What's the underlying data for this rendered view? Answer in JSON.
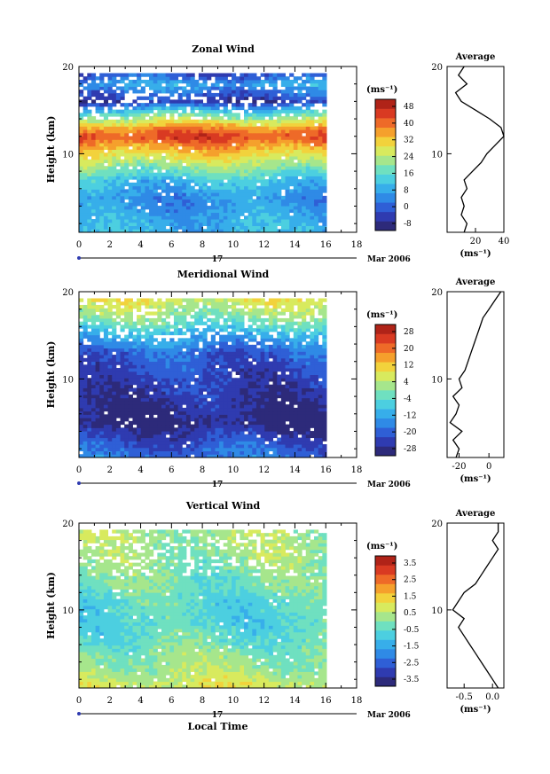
{
  "page": {
    "x_axis_label": "Local Time",
    "date_label": "Mar 2006",
    "day_label": "17",
    "unit_label": "(ms⁻¹)"
  },
  "chart_data": [
    {
      "type": "heatmap",
      "title": "Zonal Wind",
      "xlabel": "",
      "ylabel": "Height (km)",
      "xlim": [
        0,
        18
      ],
      "ylim": [
        1,
        20
      ],
      "x_ticks": [
        "0",
        "2",
        "4",
        "6",
        "8",
        "10",
        "12",
        "14",
        "16",
        "18"
      ],
      "y_ticks": [
        "10",
        "20"
      ],
      "colorbar": {
        "unit": "(ms⁻¹)",
        "tick_labels": [
          "48",
          "40",
          "32",
          "24",
          "16",
          "8",
          "0",
          "-8"
        ],
        "range": [
          -8,
          52
        ]
      },
      "field_profile": [
        {
          "h": 1,
          "v": 12
        },
        {
          "h": 3,
          "v": 10
        },
        {
          "h": 5,
          "v": 8
        },
        {
          "h": 7,
          "v": 14
        },
        {
          "h": 9,
          "v": 26
        },
        {
          "h": 11,
          "v": 38
        },
        {
          "h": 12,
          "v": 45
        },
        {
          "h": 13,
          "v": 38
        },
        {
          "h": 14,
          "v": 26
        },
        {
          "h": 15,
          "v": 14
        },
        {
          "h": 16,
          "v": -2
        },
        {
          "h": 17,
          "v": 4
        },
        {
          "h": 18,
          "v": 10
        },
        {
          "h": 19,
          "v": 2
        }
      ],
      "average_profile": {
        "title": "Average",
        "xlabel": "(ms⁻¹)",
        "xlim": [
          0,
          40
        ],
        "x_ticks": [
          "20",
          "40"
        ],
        "y_ticks": [
          "10",
          "20"
        ],
        "h": [
          1,
          2,
          3,
          4,
          5,
          6,
          7,
          8,
          9,
          10,
          11,
          12,
          13,
          14,
          15,
          16,
          17,
          18,
          19,
          20
        ],
        "v": [
          12,
          14,
          10,
          12,
          10,
          14,
          12,
          18,
          24,
          28,
          34,
          40,
          38,
          30,
          20,
          10,
          6,
          14,
          8,
          12
        ]
      }
    },
    {
      "type": "heatmap",
      "title": "Meridional Wind",
      "xlabel": "",
      "ylabel": "Height (km)",
      "xlim": [
        0,
        18
      ],
      "ylim": [
        1,
        20
      ],
      "x_ticks": [
        "0",
        "2",
        "4",
        "6",
        "8",
        "10",
        "12",
        "14",
        "16",
        "18"
      ],
      "y_ticks": [
        "10",
        "20"
      ],
      "colorbar": {
        "unit": "(ms⁻¹)",
        "tick_labels": [
          "28",
          "20",
          "12",
          "4",
          "-4",
          "-12",
          "-20",
          "-28"
        ],
        "range": [
          -28,
          28
        ]
      },
      "field_profile": [
        {
          "h": 1,
          "v": -16
        },
        {
          "h": 3,
          "v": -20
        },
        {
          "h": 5,
          "v": -26
        },
        {
          "h": 7,
          "v": -24
        },
        {
          "h": 9,
          "v": -22
        },
        {
          "h": 11,
          "v": -20
        },
        {
          "h": 13,
          "v": -18
        },
        {
          "h": 15,
          "v": -10
        },
        {
          "h": 17,
          "v": 0
        },
        {
          "h": 19,
          "v": 6
        }
      ],
      "average_profile": {
        "title": "Average",
        "xlabel": "(ms⁻¹)",
        "xlim": [
          -28,
          10
        ],
        "x_ticks": [
          "-20",
          "0"
        ],
        "y_ticks": [
          "10",
          "20"
        ],
        "h": [
          1,
          2,
          3,
          4,
          5,
          6,
          7,
          8,
          9,
          10,
          11,
          12,
          13,
          14,
          15,
          16,
          17,
          18,
          19,
          20
        ],
        "v": [
          -22,
          -20,
          -24,
          -18,
          -26,
          -22,
          -20,
          -24,
          -18,
          -20,
          -16,
          -14,
          -12,
          -10,
          -8,
          -6,
          -4,
          0,
          4,
          8
        ]
      }
    },
    {
      "type": "heatmap",
      "title": "Vertical Wind",
      "xlabel": "Local Time",
      "ylabel": "Height (km)",
      "xlim": [
        0,
        18
      ],
      "ylim": [
        1,
        20
      ],
      "x_ticks": [
        "0",
        "2",
        "4",
        "6",
        "8",
        "10",
        "12",
        "14",
        "16",
        "18"
      ],
      "y_ticks": [
        "10",
        "20"
      ],
      "colorbar": {
        "unit": "(ms⁻¹)",
        "tick_labels": [
          "3.5",
          "2.5",
          "1.5",
          "0.5",
          "-0.5",
          "-1.5",
          "-2.5",
          "-3.5"
        ],
        "range": [
          -3.5,
          3.5
        ]
      },
      "field_profile": [
        {
          "h": 1,
          "v": 0.8
        },
        {
          "h": 3,
          "v": 0.3
        },
        {
          "h": 5,
          "v": 0.0
        },
        {
          "h": 7,
          "v": -0.4
        },
        {
          "h": 9,
          "v": -0.6
        },
        {
          "h": 11,
          "v": -0.5
        },
        {
          "h": 13,
          "v": -0.2
        },
        {
          "h": 15,
          "v": 0.0
        },
        {
          "h": 17,
          "v": 0.2
        },
        {
          "h": 19,
          "v": 0.3
        }
      ],
      "average_profile": {
        "title": "Average",
        "xlabel": "(ms⁻¹)",
        "xlim": [
          -0.8,
          0.2
        ],
        "x_ticks": [
          "-0.5",
          "0.0"
        ],
        "y_ticks": [
          "10",
          "20"
        ],
        "h": [
          1,
          2,
          3,
          4,
          5,
          6,
          7,
          8,
          9,
          10,
          11,
          12,
          13,
          14,
          15,
          16,
          17,
          18,
          19,
          20
        ],
        "v": [
          0.1,
          0.0,
          -0.1,
          -0.2,
          -0.3,
          -0.4,
          -0.5,
          -0.6,
          -0.5,
          -0.7,
          -0.6,
          -0.5,
          -0.3,
          -0.2,
          -0.1,
          0.0,
          0.1,
          0.0,
          0.1,
          0.1
        ]
      }
    }
  ]
}
